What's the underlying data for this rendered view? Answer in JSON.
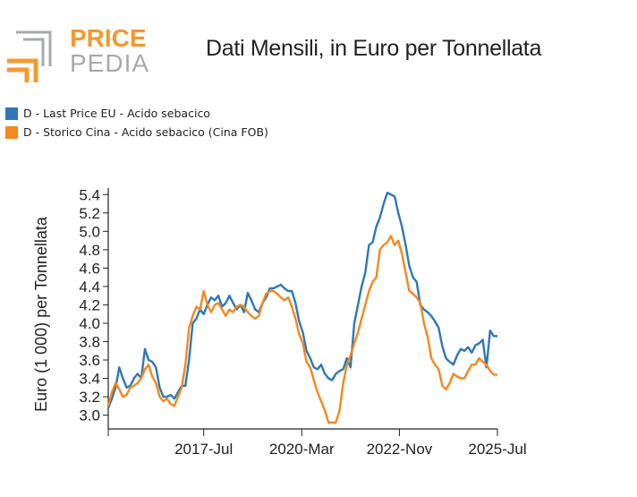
{
  "header": {
    "logo_text_top": "PRICE",
    "logo_text_bottom": "PEDIA",
    "title": "Dati Mensili, in Euro per Tonnellata"
  },
  "colors": {
    "series_blue": "#2e78b5",
    "series_orange": "#f5871f",
    "logo_orange": "#f39a2b",
    "logo_gray": "#a7a9ac"
  },
  "chart_data": {
    "type": "line",
    "title": "Dati Mensili, in Euro per Tonnellata",
    "xlabel": "",
    "ylabel": "Euro (1 000) per Tonnellata",
    "x_ticks": [
      "2017-Jul",
      "2020-Mar",
      "2022-Nov",
      "2025-Jul"
    ],
    "x_range": [
      2014.9,
      2025.5
    ],
    "y_ticks": [
      "3.0",
      "3.2",
      "3.4",
      "3.6",
      "3.8",
      "4.0",
      "4.2",
      "4.4",
      "4.6",
      "4.8",
      "5.0",
      "5.2",
      "5.4"
    ],
    "ylim": [
      2.85,
      5.5
    ],
    "legend_position": "top-left",
    "series": [
      {
        "name": "D - Last Price EU - Acido sebacico",
        "color": "#2e78b5",
        "points": [
          [
            2014.9,
            3.08
          ],
          [
            2015.0,
            3.18
          ],
          [
            2015.1,
            3.3
          ],
          [
            2015.2,
            3.52
          ],
          [
            2015.3,
            3.4
          ],
          [
            2015.4,
            3.3
          ],
          [
            2015.5,
            3.32
          ],
          [
            2015.6,
            3.4
          ],
          [
            2015.7,
            3.45
          ],
          [
            2015.8,
            3.4
          ],
          [
            2015.9,
            3.72
          ],
          [
            2016.0,
            3.6
          ],
          [
            2016.1,
            3.58
          ],
          [
            2016.2,
            3.52
          ],
          [
            2016.3,
            3.3
          ],
          [
            2016.4,
            3.2
          ],
          [
            2016.5,
            3.2
          ],
          [
            2016.6,
            3.22
          ],
          [
            2016.7,
            3.18
          ],
          [
            2016.8,
            3.25
          ],
          [
            2016.9,
            3.32
          ],
          [
            2017.0,
            3.32
          ],
          [
            2017.1,
            3.6
          ],
          [
            2017.2,
            4.0
          ],
          [
            2017.3,
            4.05
          ],
          [
            2017.4,
            4.15
          ],
          [
            2017.5,
            4.1
          ],
          [
            2017.6,
            4.2
          ],
          [
            2017.7,
            4.28
          ],
          [
            2017.8,
            4.25
          ],
          [
            2017.9,
            4.3
          ],
          [
            2018.0,
            4.18
          ],
          [
            2018.1,
            4.22
          ],
          [
            2018.2,
            4.3
          ],
          [
            2018.3,
            4.22
          ],
          [
            2018.4,
            4.15
          ],
          [
            2018.5,
            4.2
          ],
          [
            2018.6,
            4.12
          ],
          [
            2018.7,
            4.33
          ],
          [
            2018.8,
            4.25
          ],
          [
            2018.9,
            4.15
          ],
          [
            2019.0,
            4.12
          ],
          [
            2019.1,
            4.22
          ],
          [
            2019.2,
            4.28
          ],
          [
            2019.3,
            4.38
          ],
          [
            2019.4,
            4.38
          ],
          [
            2019.5,
            4.4
          ],
          [
            2019.6,
            4.42
          ],
          [
            2019.7,
            4.38
          ],
          [
            2019.8,
            4.35
          ],
          [
            2019.9,
            4.35
          ],
          [
            2020.0,
            4.22
          ],
          [
            2020.1,
            4.02
          ],
          [
            2020.2,
            3.9
          ],
          [
            2020.3,
            3.7
          ],
          [
            2020.4,
            3.62
          ],
          [
            2020.5,
            3.52
          ],
          [
            2020.6,
            3.5
          ],
          [
            2020.7,
            3.55
          ],
          [
            2020.8,
            3.45
          ],
          [
            2020.9,
            3.4
          ],
          [
            2021.0,
            3.38
          ],
          [
            2021.1,
            3.45
          ],
          [
            2021.2,
            3.48
          ],
          [
            2021.3,
            3.5
          ],
          [
            2021.4,
            3.62
          ],
          [
            2021.5,
            3.52
          ],
          [
            2021.6,
            4.0
          ],
          [
            2021.7,
            4.2
          ],
          [
            2021.8,
            4.4
          ],
          [
            2021.9,
            4.55
          ],
          [
            2022.0,
            4.85
          ],
          [
            2022.1,
            4.88
          ],
          [
            2022.2,
            5.05
          ],
          [
            2022.3,
            5.15
          ],
          [
            2022.4,
            5.3
          ],
          [
            2022.5,
            5.42
          ],
          [
            2022.6,
            5.4
          ],
          [
            2022.7,
            5.38
          ],
          [
            2022.8,
            5.2
          ],
          [
            2022.9,
            5.05
          ],
          [
            2023.0,
            4.85
          ],
          [
            2023.1,
            4.62
          ],
          [
            2023.2,
            4.5
          ],
          [
            2023.3,
            4.45
          ],
          [
            2023.4,
            4.2
          ],
          [
            2023.5,
            4.15
          ],
          [
            2023.6,
            4.12
          ],
          [
            2023.7,
            4.08
          ],
          [
            2023.8,
            4.02
          ],
          [
            2023.9,
            3.95
          ],
          [
            2024.0,
            3.75
          ],
          [
            2024.1,
            3.62
          ],
          [
            2024.2,
            3.58
          ],
          [
            2024.3,
            3.55
          ],
          [
            2024.4,
            3.65
          ],
          [
            2024.5,
            3.72
          ],
          [
            2024.6,
            3.7
          ],
          [
            2024.7,
            3.74
          ],
          [
            2024.8,
            3.68
          ],
          [
            2024.9,
            3.76
          ],
          [
            2025.0,
            3.78
          ],
          [
            2025.1,
            3.82
          ],
          [
            2025.2,
            3.52
          ],
          [
            2025.3,
            3.92
          ],
          [
            2025.4,
            3.86
          ],
          [
            2025.5,
            3.86
          ]
        ]
      },
      {
        "name": "D - Storico Cina - Acido sebacico (Cina FOB)",
        "color": "#f5871f",
        "points": [
          [
            2014.9,
            3.1
          ],
          [
            2015.0,
            3.25
          ],
          [
            2015.1,
            3.35
          ],
          [
            2015.2,
            3.28
          ],
          [
            2015.3,
            3.2
          ],
          [
            2015.4,
            3.22
          ],
          [
            2015.5,
            3.3
          ],
          [
            2015.6,
            3.32
          ],
          [
            2015.7,
            3.35
          ],
          [
            2015.8,
            3.4
          ],
          [
            2015.9,
            3.5
          ],
          [
            2016.0,
            3.55
          ],
          [
            2016.1,
            3.42
          ],
          [
            2016.2,
            3.35
          ],
          [
            2016.3,
            3.2
          ],
          [
            2016.4,
            3.15
          ],
          [
            2016.5,
            3.18
          ],
          [
            2016.6,
            3.12
          ],
          [
            2016.7,
            3.1
          ],
          [
            2016.8,
            3.2
          ],
          [
            2016.9,
            3.3
          ],
          [
            2017.0,
            3.55
          ],
          [
            2017.1,
            3.95
          ],
          [
            2017.2,
            4.08
          ],
          [
            2017.3,
            4.18
          ],
          [
            2017.4,
            4.15
          ],
          [
            2017.5,
            4.35
          ],
          [
            2017.6,
            4.2
          ],
          [
            2017.7,
            4.12
          ],
          [
            2017.8,
            4.2
          ],
          [
            2017.9,
            4.22
          ],
          [
            2018.0,
            4.15
          ],
          [
            2018.1,
            4.08
          ],
          [
            2018.2,
            4.15
          ],
          [
            2018.3,
            4.12
          ],
          [
            2018.4,
            4.18
          ],
          [
            2018.5,
            4.2
          ],
          [
            2018.6,
            4.18
          ],
          [
            2018.7,
            4.12
          ],
          [
            2018.8,
            4.08
          ],
          [
            2018.9,
            4.05
          ],
          [
            2019.0,
            4.08
          ],
          [
            2019.1,
            4.22
          ],
          [
            2019.2,
            4.32
          ],
          [
            2019.3,
            4.35
          ],
          [
            2019.4,
            4.35
          ],
          [
            2019.5,
            4.32
          ],
          [
            2019.6,
            4.28
          ],
          [
            2019.7,
            4.25
          ],
          [
            2019.8,
            4.28
          ],
          [
            2019.9,
            4.18
          ],
          [
            2020.0,
            4.05
          ],
          [
            2020.1,
            3.88
          ],
          [
            2020.2,
            3.78
          ],
          [
            2020.3,
            3.58
          ],
          [
            2020.4,
            3.52
          ],
          [
            2020.5,
            3.38
          ],
          [
            2020.6,
            3.25
          ],
          [
            2020.7,
            3.15
          ],
          [
            2020.8,
            3.05
          ],
          [
            2020.9,
            2.92
          ],
          [
            2021.0,
            2.92
          ],
          [
            2021.1,
            2.92
          ],
          [
            2021.2,
            3.05
          ],
          [
            2021.3,
            3.35
          ],
          [
            2021.4,
            3.55
          ],
          [
            2021.5,
            3.65
          ],
          [
            2021.6,
            3.78
          ],
          [
            2021.7,
            3.9
          ],
          [
            2021.8,
            4.05
          ],
          [
            2021.9,
            4.2
          ],
          [
            2022.0,
            4.35
          ],
          [
            2022.1,
            4.45
          ],
          [
            2022.2,
            4.5
          ],
          [
            2022.3,
            4.8
          ],
          [
            2022.4,
            4.85
          ],
          [
            2022.5,
            4.88
          ],
          [
            2022.6,
            4.95
          ],
          [
            2022.7,
            4.85
          ],
          [
            2022.8,
            4.9
          ],
          [
            2022.9,
            4.75
          ],
          [
            2023.0,
            4.55
          ],
          [
            2023.1,
            4.35
          ],
          [
            2023.2,
            4.32
          ],
          [
            2023.3,
            4.28
          ],
          [
            2023.4,
            4.22
          ],
          [
            2023.5,
            4.0
          ],
          [
            2023.6,
            3.85
          ],
          [
            2023.7,
            3.62
          ],
          [
            2023.8,
            3.55
          ],
          [
            2023.9,
            3.5
          ],
          [
            2024.0,
            3.32
          ],
          [
            2024.1,
            3.28
          ],
          [
            2024.2,
            3.35
          ],
          [
            2024.3,
            3.45
          ],
          [
            2024.4,
            3.42
          ],
          [
            2024.5,
            3.4
          ],
          [
            2024.6,
            3.4
          ],
          [
            2024.7,
            3.48
          ],
          [
            2024.8,
            3.55
          ],
          [
            2024.9,
            3.55
          ],
          [
            2025.0,
            3.62
          ],
          [
            2025.1,
            3.58
          ],
          [
            2025.2,
            3.55
          ],
          [
            2025.3,
            3.48
          ],
          [
            2025.4,
            3.44
          ],
          [
            2025.5,
            3.44
          ]
        ]
      }
    ]
  }
}
